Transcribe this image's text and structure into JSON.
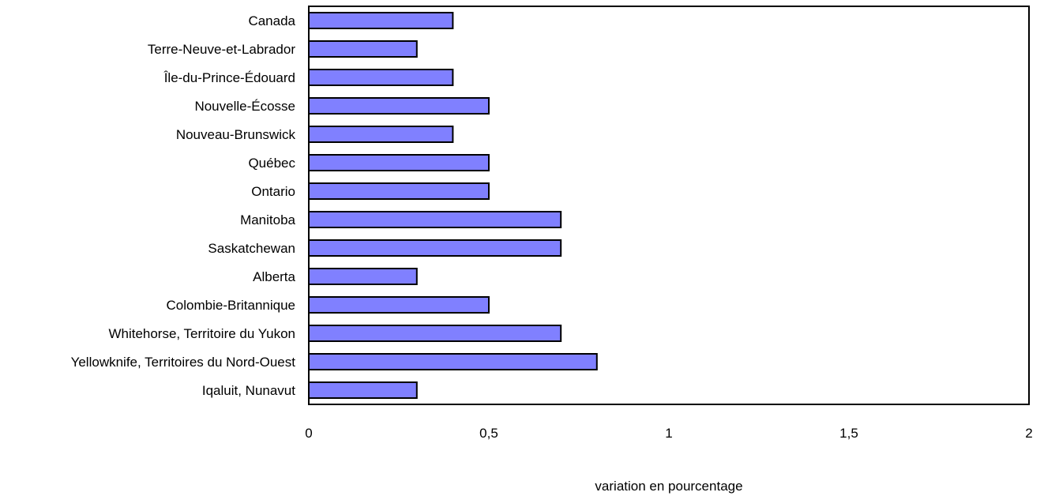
{
  "chart_data": {
    "type": "bar",
    "orientation": "horizontal",
    "categories": [
      "Canada",
      "Terre-Neuve-et-Labrador",
      "Île-du-Prince-Édouard",
      "Nouvelle-Écosse",
      "Nouveau-Brunswick",
      "Québec",
      "Ontario",
      "Manitoba",
      "Saskatchewan",
      "Alberta",
      "Colombie-Britannique",
      "Whitehorse, Territoire du Yukon",
      "Yellowknife, Territoires du Nord-Ouest",
      "Iqaluit, Nunavut"
    ],
    "values": [
      0.4,
      0.3,
      0.4,
      0.5,
      0.4,
      0.5,
      0.5,
      0.7,
      0.7,
      0.3,
      0.5,
      0.7,
      0.8,
      0.3
    ],
    "xlabel": "variation en pourcentage",
    "xlim": [
      0,
      2
    ],
    "xticks": [
      0,
      0.5,
      1,
      1.5,
      2
    ],
    "xtick_labels": [
      "0",
      "0,5",
      "1",
      "1,5",
      "2"
    ],
    "grid": false,
    "bar_color": "#8080ff",
    "bar_edge_color": "#000000"
  }
}
